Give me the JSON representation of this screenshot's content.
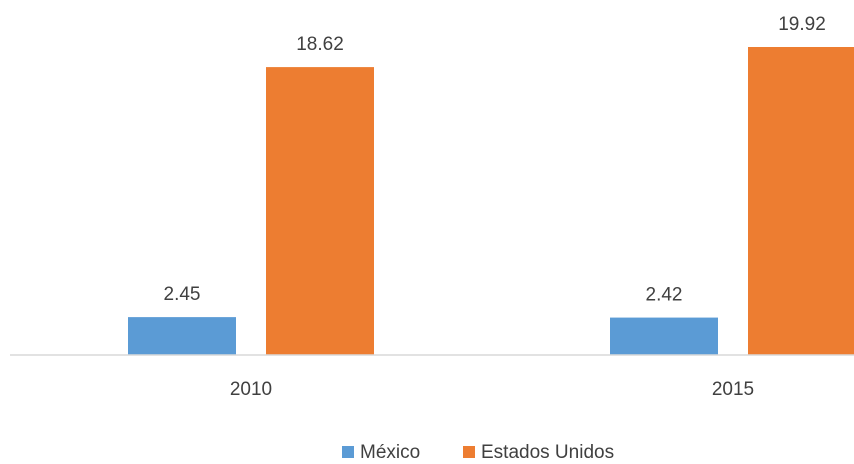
{
  "chart_data": {
    "type": "bar",
    "categories": [
      "2010",
      "2015"
    ],
    "series": [
      {
        "name": "México",
        "color": "#5b9bd5",
        "values": [
          2.45,
          2.42
        ]
      },
      {
        "name": "Estados Unidos",
        "color": "#ed7d31",
        "values": [
          18.62,
          19.92
        ]
      }
    ],
    "legend": "bottom"
  }
}
